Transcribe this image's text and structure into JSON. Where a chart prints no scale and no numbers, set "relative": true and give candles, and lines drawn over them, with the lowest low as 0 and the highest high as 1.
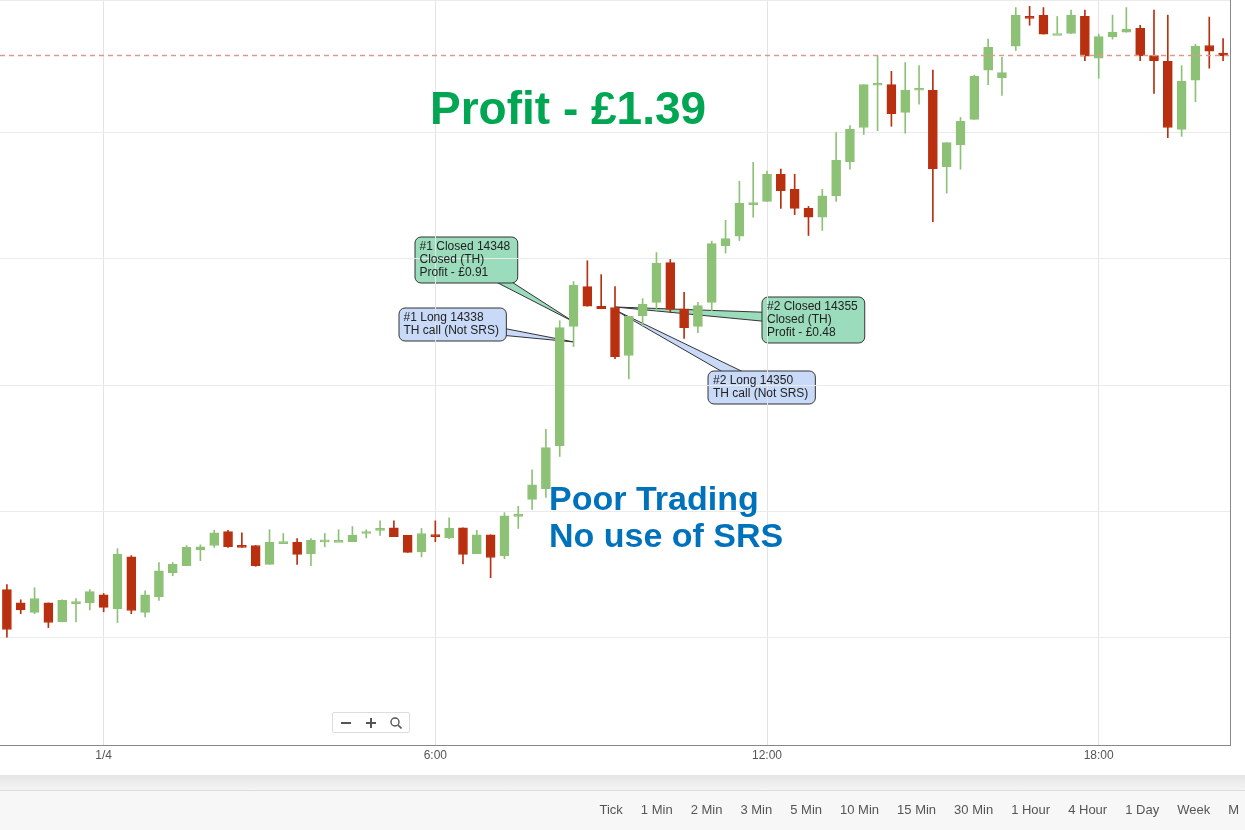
{
  "chart_data": {
    "type": "candlestick",
    "relative": true,
    "grid": true,
    "categories": [
      null,
      null,
      null,
      null,
      null,
      null,
      null,
      "1/4",
      null,
      null,
      null,
      null,
      null,
      null,
      null,
      null,
      null,
      null,
      null,
      null,
      null,
      null,
      null,
      null,
      null,
      null,
      null,
      null,
      null,
      null,
      null,
      "6:00",
      null,
      null,
      null,
      null,
      null,
      null,
      null,
      null,
      null,
      null,
      null,
      null,
      null,
      null,
      null,
      null,
      null,
      null,
      null,
      null,
      null,
      null,
      null,
      "12:00",
      null,
      null,
      null,
      null,
      null,
      null,
      null,
      null,
      null,
      null,
      null,
      null,
      null,
      null,
      null,
      null,
      null,
      null,
      null,
      null,
      null,
      null,
      null,
      "18:00",
      null,
      null,
      null,
      null,
      null,
      null,
      null,
      null,
      null
    ],
    "ohlc": [
      [
        0.076,
        0.084,
        0,
        0.013
      ],
      [
        0.055,
        0.06,
        0.038,
        0.044
      ],
      [
        0.04,
        0.079,
        0.038,
        0.062
      ],
      [
        0.055,
        0.055,
        0.016,
        0.024
      ],
      [
        0.025,
        0.06,
        0.025,
        0.059
      ],
      [
        0.054,
        0.062,
        0.025,
        0.057
      ],
      [
        0.055,
        0.076,
        0.044,
        0.073
      ],
      [
        0.068,
        0.07,
        0.041,
        0.048
      ],
      [
        0.046,
        0.141,
        0.024,
        0.132
      ],
      [
        0.128,
        0.13,
        0.038,
        0.043
      ],
      [
        0.04,
        0.074,
        0.033,
        0.068
      ],
      [
        0.065,
        0.119,
        0.059,
        0.106
      ],
      [
        0.103,
        0.119,
        0.098,
        0.116
      ],
      [
        0.114,
        0.146,
        0.114,
        0.143
      ],
      [
        0.139,
        0.147,
        0.122,
        0.144
      ],
      [
        0.146,
        0.17,
        0.143,
        0.166
      ],
      [
        0.168,
        0.17,
        0.143,
        0.144
      ],
      [
        0.146,
        0.166,
        0.143,
        0.143
      ],
      [
        0.146,
        0.146,
        0.113,
        0.114
      ],
      [
        0.116,
        0.171,
        0.116,
        0.151
      ],
      [
        0.152,
        0.165,
        0.151,
        0.152
      ],
      [
        0.151,
        0.157,
        0.116,
        0.132
      ],
      [
        0.133,
        0.157,
        0.114,
        0.154
      ],
      [
        0.155,
        0.165,
        0.144,
        0.155
      ],
      [
        0.154,
        0.171,
        0.154,
        0.154
      ],
      [
        0.152,
        0.176,
        0.152,
        0.162
      ],
      [
        0.165,
        0.171,
        0.158,
        0.168
      ],
      [
        0.173,
        0.185,
        0.162,
        0.173
      ],
      [
        0.174,
        0.185,
        0.16,
        0.16
      ],
      [
        0.162,
        0.162,
        0.135,
        0.135
      ],
      [
        0.136,
        0.173,
        0.128,
        0.165
      ],
      [
        0.163,
        0.185,
        0.152,
        0.16
      ],
      [
        0.158,
        0.19,
        0.157,
        0.173
      ],
      [
        0.174,
        0.174,
        0.117,
        0.132
      ],
      [
        0.133,
        0.17,
        0.133,
        0.163
      ],
      [
        0.163,
        0.163,
        0.095,
        0.127
      ],
      [
        0.13,
        0.198,
        0.125,
        0.193
      ],
      [
        0.192,
        0.208,
        0.173,
        0.195
      ],
      [
        0.219,
        0.266,
        0.203,
        0.242
      ],
      [
        0.236,
        0.33,
        0.222,
        0.301
      ],
      [
        0.304,
        0.502,
        0.287,
        0.491
      ],
      [
        0.493,
        0.564,
        0.461,
        0.558
      ],
      [
        0.556,
        0.597,
        0.525,
        0.525
      ],
      [
        0.525,
        0.575,
        0.521,
        0.521
      ],
      [
        0.523,
        0.556,
        0.442,
        0.445
      ],
      [
        0.447,
        0.509,
        0.41,
        0.509
      ],
      [
        0.51,
        0.537,
        0.493,
        0.528
      ],
      [
        0.531,
        0.61,
        0.518,
        0.593
      ],
      [
        0.594,
        0.599,
        0.515,
        0.52
      ],
      [
        0.521,
        0.547,
        0.474,
        0.491
      ],
      [
        0.493,
        0.531,
        0.483,
        0.526
      ],
      [
        0.531,
        0.628,
        0.518,
        0.624
      ],
      [
        0.621,
        0.661,
        0.609,
        0.632
      ],
      [
        0.636,
        0.723,
        0.629,
        0.688
      ],
      [
        0.686,
        0.753,
        0.666,
        0.689
      ],
      [
        0.691,
        0.739,
        0.691,
        0.734
      ],
      [
        0.734,
        0.742,
        0.68,
        0.708
      ],
      [
        0.71,
        0.734,
        0.67,
        0.68
      ],
      [
        0.68,
        0.683,
        0.637,
        0.666
      ],
      [
        0.666,
        0.71,
        0.645,
        0.7
      ],
      [
        0.7,
        0.8,
        0.691,
        0.756
      ],
      [
        0.754,
        0.811,
        0.742,
        0.805
      ],
      [
        0.808,
        0.876,
        0.797,
        0.876
      ],
      [
        0.875,
        0.922,
        0.803,
        0.878
      ],
      [
        0.876,
        0.897,
        0.81,
        0.83
      ],
      [
        0.832,
        0.911,
        0.799,
        0.867
      ],
      [
        0.867,
        0.906,
        0.845,
        0.87
      ],
      [
        0.867,
        0.899,
        0.659,
        0.743
      ],
      [
        0.746,
        0.784,
        0.704,
        0.784
      ],
      [
        0.781,
        0.824,
        0.742,
        0.818
      ],
      [
        0.821,
        0.891,
        0.821,
        0.889
      ],
      [
        0.899,
        0.948,
        0.876,
        0.935
      ],
      [
        0.887,
        0.919,
        0.859,
        0.895
      ],
      [
        0.937,
        0.998,
        0.93,
        0.986
      ],
      [
        0.984,
        1,
        0.97,
        0.981
      ],
      [
        0.986,
        0.998,
        0.956,
        0.956
      ],
      [
        0.957,
        0.984,
        0.957,
        0.957
      ],
      [
        0.957,
        0.994,
        0.957,
        0.986
      ],
      [
        0.984,
        0.994,
        0.914,
        0.921
      ],
      [
        0.918,
        0.956,
        0.886,
        0.952
      ],
      [
        0.952,
        0.986,
        0.948,
        0.959
      ],
      [
        0.959,
        0.998,
        0.959,
        0.964
      ],
      [
        0.965,
        0.97,
        0.914,
        0.922
      ],
      [
        0.922,
        0.994,
        0.862,
        0.914
      ],
      [
        0.913,
        0.986,
        0.792,
        0.808
      ],
      [
        0.805,
        0.906,
        0.794,
        0.881
      ],
      [
        0.883,
        0.94,
        0.849,
        0.937
      ],
      [
        0.938,
        0.983,
        0.902,
        0.929
      ],
      [
        0.926,
        0.949,
        0.914,
        0.922
      ]
    ],
    "colors": [
      "#b8300f",
      "#b8300f",
      "#8dc276",
      "#b8300f",
      "#8dc276",
      "#8dc276",
      "#8dc276",
      "#b8300f",
      "#8dc276",
      "#b8300f",
      "#8dc276",
      "#8dc276",
      "#8dc276",
      "#8dc276",
      "#8dc276",
      "#8dc276",
      "#b8300f",
      "#b8300f",
      "#b8300f",
      "#8dc276",
      "#8dc276",
      "#b8300f",
      "#8dc276",
      "#8dc276",
      "#8dc276",
      "#8dc276",
      "#8dc276",
      "#8dc276",
      "#b8300f",
      "#b8300f",
      "#8dc276",
      "#b8300f",
      "#8dc276",
      "#b8300f",
      "#8dc276",
      "#b8300f",
      "#8dc276",
      "#8dc276",
      "#8dc276",
      "#8dc276",
      "#8dc276",
      "#8dc276",
      "#b8300f",
      "#b8300f",
      "#b8300f",
      "#8dc276",
      "#8dc276",
      "#8dc276",
      "#b8300f",
      "#b8300f",
      "#8dc276",
      "#8dc276",
      "#8dc276",
      "#8dc276",
      "#8dc276",
      "#8dc276",
      "#b8300f",
      "#b8300f",
      "#b8300f",
      "#8dc276",
      "#8dc276",
      "#8dc276",
      "#8dc276",
      "#8dc276",
      "#b8300f",
      "#8dc276",
      "#8dc276",
      "#b8300f",
      "#8dc276",
      "#8dc276",
      "#8dc276",
      "#8dc276",
      "#8dc276",
      "#8dc276",
      "#b8300f",
      "#b8300f",
      "#8dc276",
      "#8dc276",
      "#b8300f",
      "#8dc276",
      "#8dc276",
      "#8dc276",
      "#b8300f",
      "#b8300f",
      "#b8300f",
      "#8dc276",
      "#8dc276",
      "#b8300f",
      "#b8300f"
    ],
    "ref_lines": [
      {
        "axis": "y",
        "value": 0.922,
        "color": "#dd9a8c",
        "line_style": "dashed"
      }
    ],
    "annotations": [
      "#1 Closed 14348\nClosed (TH)\nProfit - £0.91",
      "#1 Long 14338\nTH call (Not SRS)",
      "#2 Closed 14355\nClosed (TH)\nProfit - £0.48",
      "#2 Long 14350\nTH call (Not SRS)",
      "Profit - £1.39",
      "Poor Trading\nNo use of SRS",
      "Tick",
      "1 Min",
      "2 Min",
      "3 Min",
      "5 Min",
      "10 Min",
      "15 Min",
      "30 Min",
      "1 Hour",
      "4 Hour",
      "1 Day",
      "Week",
      "M"
    ]
  }
}
